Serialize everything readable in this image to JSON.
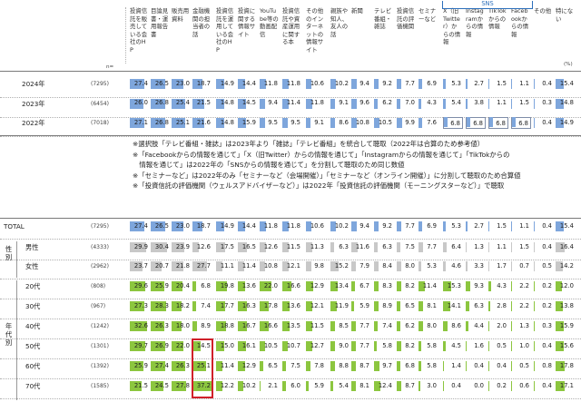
{
  "colors": {
    "blue": "#7ea6dc",
    "green": "#8cc63f",
    "gray": "#c8c8c8",
    "highlight": "#d0202a"
  },
  "headers": [
    "投資信託を販売している会社のHP",
    "目論見書・運用報告書",
    "販売用資料",
    "金融機関の担当者の話",
    "投資信託を運用している会社のHP",
    "投資に関する情報サイト",
    "YouTube等の動画配信",
    "投資信託や資産運用に関する本",
    "その他のインターネットの情報サイト",
    "親族や知人、友人の話",
    "新聞",
    "テレビ番組・雑誌",
    "投資信託の評価機関",
    "セミナーなど",
    "X（旧Twitter）からの情報",
    "Instagramからの情報",
    "TikTokからの情報",
    "Facebookからの情報",
    "その他",
    "特にない"
  ],
  "sns_label": "SNS",
  "n_label": "n=",
  "pct_label": "(%)",
  "rows_top": [
    {
      "label": "2024年",
      "n": "(7295)",
      "values": [
        "27.4",
        "26.5",
        "23.0",
        "18.7",
        "14.9",
        "14.4",
        "11.8",
        "11.8",
        "10.6",
        "10.2",
        "9.4",
        "9.2",
        "7.7",
        "6.9",
        "5.3",
        "2.7",
        "1.5",
        "1.1",
        "0.4",
        "15.4"
      ]
    },
    {
      "label": "2023年",
      "n": "(6454)",
      "values": [
        "26.0",
        "26.8",
        "25.4",
        "21.5",
        "14.8",
        "14.5",
        "9.4",
        "11.4",
        "11.8",
        "9.1",
        "9.6",
        "6.2",
        "7.0",
        "4.3",
        "5.4",
        "3.8",
        "1.1",
        "1.5",
        "0.3",
        "14.8"
      ]
    },
    {
      "label": "2022年",
      "n": "(7018)",
      "values": [
        "27.1",
        "26.8",
        "25.1",
        "21.6",
        "14.8",
        "15.9",
        "9.5",
        "9.5",
        "9.1",
        "8.6",
        "10.8",
        "10.5",
        "9.9",
        "7.6",
        "6.8",
        "6.8",
        "6.8",
        "6.8",
        "0.4",
        "14.9"
      ]
    }
  ],
  "notes": [
    "※選択肢「テレビ番組・雑誌」は2023年より「雑誌」「テレビ番組」を統合して聴取（2022年は合算のため参考値）",
    "※「Facebookからの情報を通じて」「X（旧Twitter）からの情報を通じて」「Instagramからの情報を通じて」「TikTokからの",
    "　情報を通じて」は2022年の「SNSからの情報を通じて」を分割して聴取のため同じ数値",
    "※「セミナーなど」は2022年のみ「セミナーなど（会場開催）」「セミナーなど（オンライン開催）」に分割して聴取のため合算値",
    "※「投資信託の評価機関（ウェルスアドバイザーなど）」は2022年「投資信託の評価機関（モーニングスターなど）」で聴取"
  ],
  "group_labels": {
    "sex": "性別",
    "age": "年代別"
  },
  "rows_bottom": [
    {
      "label": "TOTAL",
      "n": "(7295)",
      "values": [
        "27.4",
        "26.5",
        "23.0",
        "18.7",
        "14.9",
        "14.4",
        "11.8",
        "11.8",
        "10.6",
        "10.2",
        "9.4",
        "9.2",
        "7.7",
        "6.9",
        "5.3",
        "2.7",
        "1.5",
        "1.1",
        "0.4",
        "15.4"
      ]
    },
    {
      "label": "男性",
      "n": "(4333)",
      "values": [
        "29.9",
        "30.4",
        "23.9",
        "12.6",
        "17.5",
        "16.5",
        "12.6",
        "11.5",
        "11.3",
        "6.3",
        "11.6",
        "6.3",
        "7.5",
        "7.7",
        "6.4",
        "1.3",
        "1.1",
        "1.5",
        "0.4",
        "16.4"
      ]
    },
    {
      "label": "女性",
      "n": "(2962)",
      "values": [
        "23.7",
        "20.7",
        "21.8",
        "27.7",
        "11.1",
        "11.4",
        "10.8",
        "12.1",
        "9.8",
        "15.2",
        "7.9",
        "8.4",
        "8.0",
        "5.3",
        "4.6",
        "3.3",
        "1.7",
        "0.7",
        "0.5",
        "14.2"
      ]
    },
    {
      "label": "20代",
      "n": "(808)",
      "values": [
        "29.6",
        "25.9",
        "20.4",
        "6.8",
        "19.8",
        "13.6",
        "22.0",
        "16.6",
        "12.9",
        "13.4",
        "6.7",
        "8.3",
        "8.2",
        "11.4",
        "15.3",
        "9.3",
        "4.3",
        "2.2",
        "0.2",
        "12.0"
      ]
    },
    {
      "label": "30代",
      "n": "(967)",
      "values": [
        "27.3",
        "28.3",
        "18.2",
        "7.4",
        "17.7",
        "16.3",
        "17.8",
        "13.6",
        "12.1",
        "11.9",
        "5.9",
        "8.9",
        "6.5",
        "8.1",
        "14.1",
        "6.3",
        "2.8",
        "2.2",
        "0.2",
        "13.8"
      ]
    },
    {
      "label": "40代",
      "n": "(1242)",
      "values": [
        "32.6",
        "26.3",
        "18.0",
        "8.9",
        "18.8",
        "16.7",
        "16.6",
        "13.5",
        "11.5",
        "8.5",
        "7.7",
        "7.4",
        "6.2",
        "8.0",
        "8.6",
        "4.4",
        "2.0",
        "1.3",
        "0.3",
        "15.9"
      ]
    },
    {
      "label": "50代",
      "n": "(1301)",
      "values": [
        "29.7",
        "26.9",
        "22.0",
        "14.5",
        "15.0",
        "16.1",
        "10.5",
        "10.7",
        "12.7",
        "9.0",
        "7.7",
        "5.8",
        "8.2",
        "5.8",
        "4.5",
        "1.6",
        "0.5",
        "1.0",
        "0.4",
        "15.6"
      ]
    },
    {
      "label": "60代",
      "n": "(1392)",
      "values": [
        "25.9",
        "27.4",
        "26.3",
        "25.1",
        "11.4",
        "12.9",
        "6.5",
        "7.5",
        "7.8",
        "8.8",
        "8.7",
        "9.7",
        "6.8",
        "5.8",
        "1.4",
        "0.4",
        "0.4",
        "0.5",
        "0.8",
        "17.8"
      ]
    },
    {
      "label": "70代",
      "n": "(1585)",
      "values": [
        "21.5",
        "24.5",
        "27.8",
        "37.2",
        "12.2",
        "10.2",
        "2.1",
        "6.0",
        "5.9",
        "5.4",
        "8.1",
        "12.4",
        "8.7",
        "3.0",
        "0.4",
        "0.0",
        "0.2",
        "0.6",
        "0.4",
        "17.1"
      ]
    }
  ]
}
